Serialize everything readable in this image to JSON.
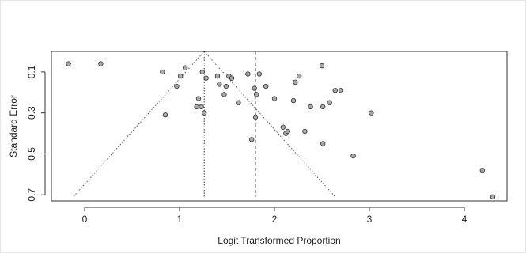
{
  "chart_data": {
    "type": "scatter",
    "title": "",
    "xlabel": "Logit Transformed Proportion",
    "ylabel": "Standard Error",
    "xlim": [
      -0.35,
      4.45
    ],
    "ylim": [
      0.0,
      0.73
    ],
    "y_reversed": true,
    "grid": false,
    "x_ticks": [
      0,
      1,
      2,
      3,
      4
    ],
    "x_tick_labels": [
      "0",
      "1",
      "2",
      "3",
      "4"
    ],
    "y_ticks": [
      0.1,
      0.3,
      0.5,
      0.7
    ],
    "y_tick_labels": [
      "0.1",
      "0.3",
      "0.5",
      "0.7"
    ],
    "point_fill": "#a9a9a9",
    "point_stroke": "#333333",
    "funnel": {
      "apex": [
        1.26,
        0.0
      ],
      "base_left": [
        -0.12,
        0.71
      ],
      "base_right": [
        2.64,
        0.71
      ],
      "color": "#555555"
    },
    "reference_lines": [
      {
        "x": 1.26,
        "style": "dotted",
        "color": "#333333"
      },
      {
        "x": 1.8,
        "style": "dashed",
        "color": "#4a4a8a"
      }
    ],
    "x": [
      -0.17,
      0.17,
      0.82,
      0.85,
      0.97,
      1.01,
      1.06,
      1.18,
      1.2,
      1.23,
      1.24,
      1.26,
      1.28,
      1.4,
      1.42,
      1.47,
      1.49,
      1.52,
      1.55,
      1.62,
      1.72,
      1.76,
      1.79,
      1.8,
      1.81,
      1.84,
      1.91,
      2.0,
      2.09,
      2.12,
      2.14,
      2.2,
      2.22,
      2.26,
      2.32,
      2.38,
      2.5,
      2.51,
      2.51,
      2.58,
      2.64,
      2.7,
      3.02,
      2.83,
      4.19,
      4.3
    ],
    "y": [
      0.06,
      0.06,
      0.1,
      0.31,
      0.17,
      0.12,
      0.08,
      0.27,
      0.23,
      0.27,
      0.1,
      0.3,
      0.13,
      0.12,
      0.16,
      0.21,
      0.17,
      0.12,
      0.13,
      0.25,
      0.11,
      0.43,
      0.18,
      0.32,
      0.21,
      0.11,
      0.17,
      0.23,
      0.37,
      0.4,
      0.39,
      0.24,
      0.15,
      0.12,
      0.39,
      0.27,
      0.07,
      0.27,
      0.45,
      0.25,
      0.19,
      0.19,
      0.3,
      0.51,
      0.58,
      0.71
    ]
  }
}
